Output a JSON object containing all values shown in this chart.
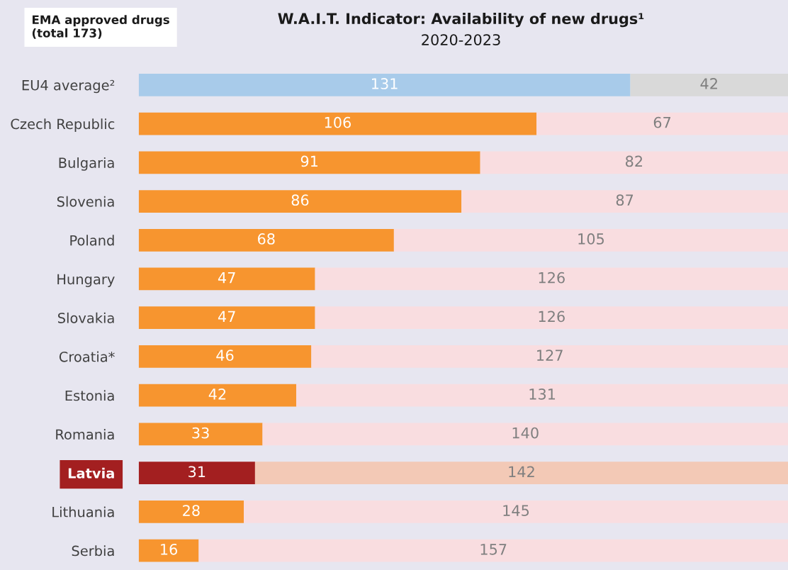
{
  "chart_data": {
    "type": "bar",
    "orientation": "horizontal",
    "stacked": true,
    "data_labels": true,
    "title": "W.A.I.T. Indicator: Availability of new drugs¹",
    "subtitle": "2020-2023",
    "annotations": [
      "EMA approved drugs\n(total 173)"
    ],
    "categories": [
      "EU4 average²",
      "Czech Republic",
      "Bulgaria",
      "Slovenia",
      "Poland",
      "Hungary",
      "Slovakia",
      "Croatia*",
      "Estonia",
      "Romania",
      "Latvia",
      "Lithuania",
      "Serbia"
    ],
    "series": [
      {
        "values": [
          131,
          106,
          91,
          86,
          68,
          47,
          47,
          46,
          42,
          33,
          31,
          28,
          16
        ],
        "colors": [
          "#a8cbea",
          "#f7952f",
          "#f7952f",
          "#f7952f",
          "#f7952f",
          "#f7952f",
          "#f7952f",
          "#f7952f",
          "#f7952f",
          "#f7952f",
          "#a31f20",
          "#f7952f",
          "#f7952f"
        ]
      },
      {
        "values": [
          42,
          67,
          82,
          87,
          105,
          126,
          126,
          127,
          131,
          140,
          142,
          145,
          157
        ],
        "colors": [
          "#d9d9d9",
          "#f9dde0",
          "#f9dde0",
          "#f9dde0",
          "#f9dde0",
          "#f9dde0",
          "#f9dde0",
          "#f9dde0",
          "#f9dde0",
          "#f9dde0",
          "#f3c9b6",
          "#f9dde0",
          "#f9dde0"
        ]
      }
    ]
  }
}
